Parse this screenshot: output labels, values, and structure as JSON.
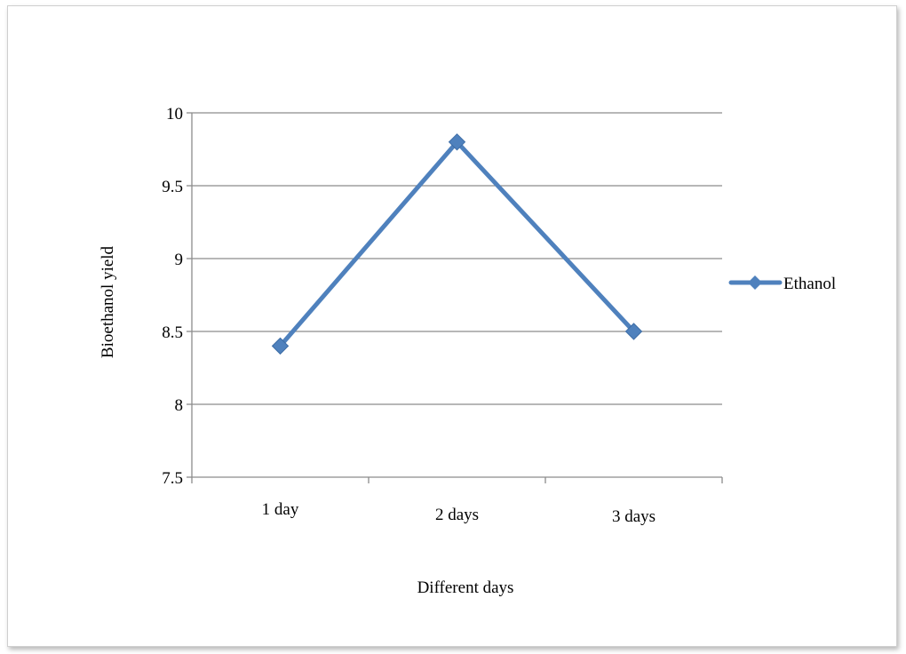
{
  "chart_data": {
    "type": "line",
    "categories": [
      "1 day",
      "2 days",
      "3 days"
    ],
    "series": [
      {
        "name": "Ethanol",
        "values": [
          8.4,
          9.8,
          8.5
        ],
        "color": "#4f81bd"
      }
    ],
    "title": "",
    "xlabel": "Different days",
    "ylabel": "Bioethanol yield",
    "ylim": [
      7.5,
      10
    ],
    "yticks": [
      "7.5",
      "8",
      "8.5",
      "9",
      "9.5",
      "10"
    ],
    "grid": true,
    "legend": "right",
    "marker": "diamond"
  }
}
